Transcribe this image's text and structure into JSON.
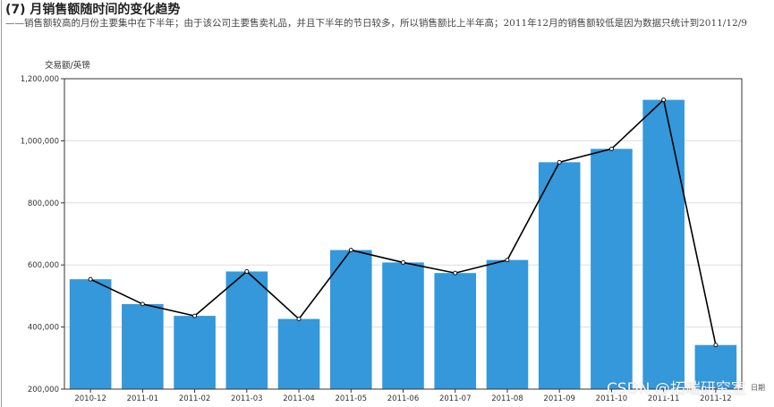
{
  "header": {
    "title": "(7) 月销售额随时间的变化趋势",
    "subtitle": "——销售额较高的月份主要集中在下半年；由于该公司主要售卖礼品，并且下半年的节日较多，所以销售额比上半年高；2011年12月的销售额较低是因为数据只统计到2011/12/9"
  },
  "watermark": "CSDN @拓端研究室",
  "chart_data": {
    "type": "bar",
    "title": "",
    "ylabel": "交易额/英镑",
    "xlabel": "日期",
    "ylim": [
      200000,
      1200000
    ],
    "yticks": [
      200000,
      400000,
      600000,
      800000,
      1000000,
      1200000
    ],
    "ytick_labels": [
      "200,000",
      "400,000",
      "600,000",
      "800,000",
      "1,000,000",
      "1,200,000"
    ],
    "grid": true,
    "categories": [
      "2010-12",
      "2011-01",
      "2011-02",
      "2011-03",
      "2011-04",
      "2011-05",
      "2011-06",
      "2011-07",
      "2011-08",
      "2011-09",
      "2011-10",
      "2011-11",
      "2011-12"
    ],
    "series": [
      {
        "type": "bar",
        "color": "#3498db",
        "values": [
          554000,
          474000,
          436000,
          579000,
          426000,
          648000,
          608000,
          574000,
          616000,
          931000,
          974000,
          1132000,
          342000
        ]
      },
      {
        "type": "line",
        "color": "#000000",
        "values": [
          554000,
          474000,
          436000,
          579000,
          426000,
          648000,
          608000,
          574000,
          616000,
          931000,
          974000,
          1132000,
          342000
        ]
      }
    ]
  }
}
